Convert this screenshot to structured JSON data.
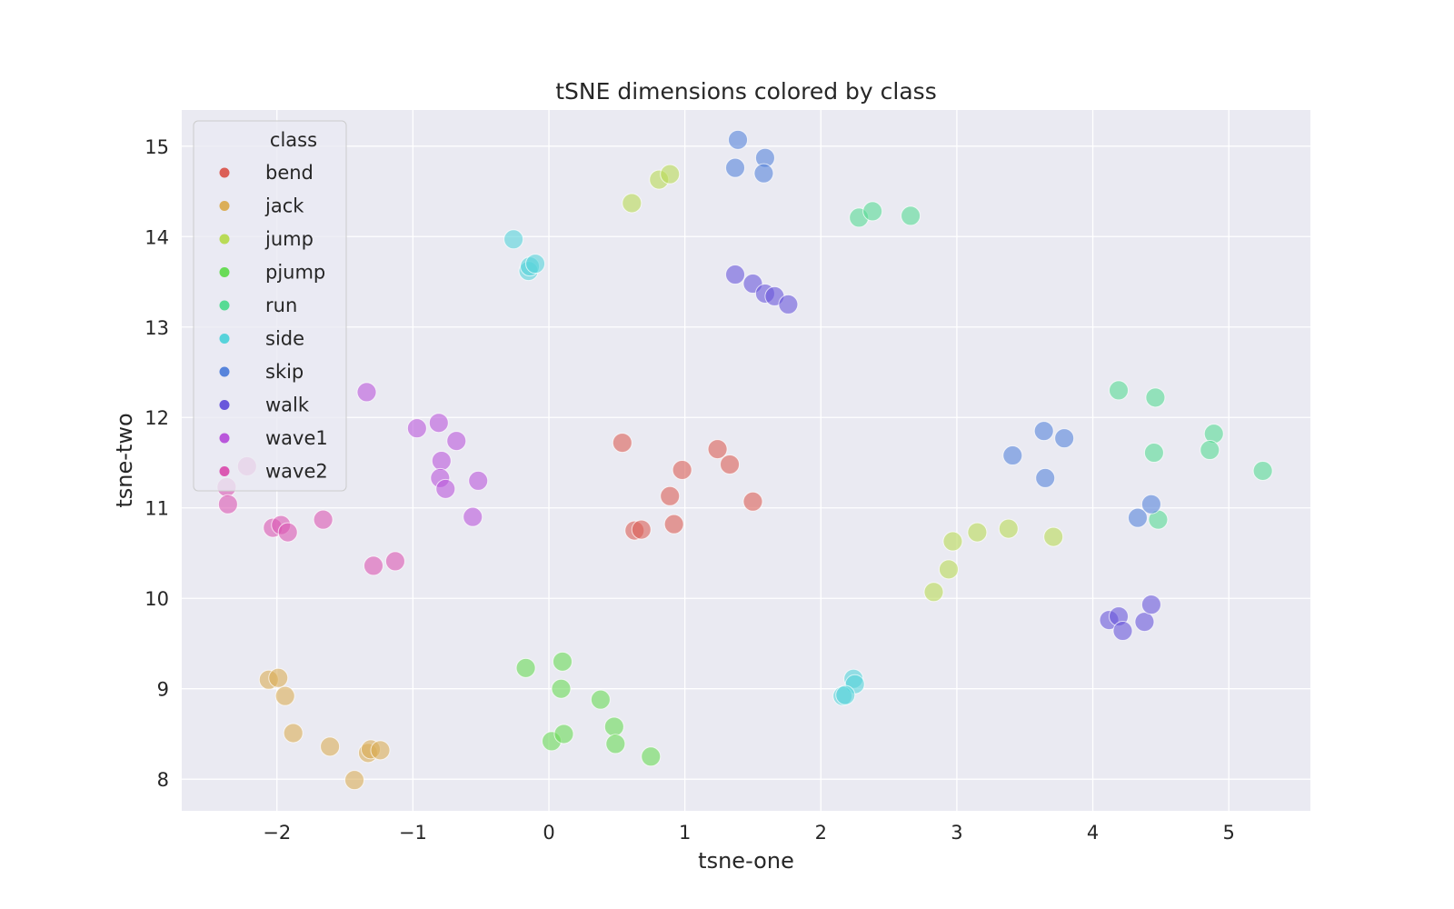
{
  "chart_data": {
    "type": "scatter",
    "title": "tSNE dimensions colored by class",
    "xlabel": "tsne-one",
    "ylabel": "tsne-two",
    "xlim": [
      -2.7,
      5.6
    ],
    "ylim": [
      7.65,
      15.4
    ],
    "xticks": [
      -2,
      -1,
      0,
      1,
      2,
      3,
      4,
      5
    ],
    "xtick_labels": [
      "−2",
      "−1",
      "0",
      "1",
      "2",
      "3",
      "4",
      "5"
    ],
    "yticks": [
      8,
      9,
      10,
      11,
      12,
      13,
      14,
      15
    ],
    "ytick_labels": [
      "8",
      "9",
      "10",
      "11",
      "12",
      "13",
      "14",
      "15"
    ],
    "grid": true,
    "legend": {
      "title": "class",
      "placement": "top-left"
    },
    "series": [
      {
        "name": "bend",
        "color": "#db5f57",
        "points": [
          [
            0.54,
            11.72
          ],
          [
            1.24,
            11.65
          ],
          [
            1.33,
            11.48
          ],
          [
            0.98,
            11.42
          ],
          [
            0.89,
            11.13
          ],
          [
            1.5,
            11.07
          ],
          [
            0.63,
            10.75
          ],
          [
            0.68,
            10.76
          ],
          [
            0.92,
            10.82
          ]
        ]
      },
      {
        "name": "jack",
        "color": "#dbae57",
        "points": [
          [
            -2.06,
            9.1
          ],
          [
            -1.99,
            9.12
          ],
          [
            -1.94,
            8.92
          ],
          [
            -1.88,
            8.51
          ],
          [
            -1.61,
            8.36
          ],
          [
            -1.33,
            8.29
          ],
          [
            -1.31,
            8.33
          ],
          [
            -1.24,
            8.32
          ],
          [
            -1.43,
            7.99
          ]
        ]
      },
      {
        "name": "jump",
        "color": "#b9db57",
        "points": [
          [
            0.61,
            14.37
          ],
          [
            0.81,
            14.63
          ],
          [
            0.89,
            14.69
          ],
          [
            2.97,
            10.63
          ],
          [
            3.15,
            10.73
          ],
          [
            3.38,
            10.77
          ],
          [
            3.71,
            10.68
          ],
          [
            2.94,
            10.32
          ],
          [
            2.83,
            10.07
          ]
        ]
      },
      {
        "name": "pjump",
        "color": "#69db57",
        "points": [
          [
            -0.17,
            9.23
          ],
          [
            0.1,
            9.3
          ],
          [
            0.09,
            9.0
          ],
          [
            0.38,
            8.88
          ],
          [
            0.02,
            8.42
          ],
          [
            0.11,
            8.5
          ],
          [
            0.48,
            8.58
          ],
          [
            0.49,
            8.39
          ],
          [
            0.75,
            8.25
          ]
        ]
      },
      {
        "name": "run",
        "color": "#57db94",
        "points": [
          [
            2.28,
            14.21
          ],
          [
            2.38,
            14.28
          ],
          [
            2.66,
            14.23
          ],
          [
            4.19,
            12.3
          ],
          [
            4.46,
            12.22
          ],
          [
            4.89,
            11.82
          ],
          [
            4.86,
            11.64
          ],
          [
            4.45,
            11.61
          ],
          [
            5.25,
            11.41
          ],
          [
            4.48,
            10.87
          ]
        ]
      },
      {
        "name": "side",
        "color": "#57d3db",
        "points": [
          [
            -0.26,
            13.97
          ],
          [
            -0.15,
            13.62
          ],
          [
            -0.14,
            13.67
          ],
          [
            -0.1,
            13.7
          ],
          [
            2.24,
            9.11
          ],
          [
            2.25,
            9.05
          ],
          [
            2.16,
            8.92
          ],
          [
            2.18,
            8.93
          ]
        ]
      },
      {
        "name": "skip",
        "color": "#5784db",
        "points": [
          [
            1.39,
            15.07
          ],
          [
            1.59,
            14.87
          ],
          [
            1.37,
            14.76
          ],
          [
            1.58,
            14.7
          ],
          [
            3.64,
            11.85
          ],
          [
            3.79,
            11.77
          ],
          [
            3.41,
            11.58
          ],
          [
            3.65,
            11.33
          ],
          [
            4.43,
            11.04
          ],
          [
            4.33,
            10.89
          ]
        ]
      },
      {
        "name": "walk",
        "color": "#6957db",
        "points": [
          [
            1.37,
            13.58
          ],
          [
            1.5,
            13.48
          ],
          [
            1.59,
            13.37
          ],
          [
            1.66,
            13.34
          ],
          [
            1.76,
            13.25
          ],
          [
            4.12,
            9.76
          ],
          [
            4.19,
            9.8
          ],
          [
            4.22,
            9.64
          ],
          [
            4.38,
            9.74
          ],
          [
            4.43,
            9.93
          ]
        ]
      },
      {
        "name": "wave1",
        "color": "#b957db",
        "points": [
          [
            -1.34,
            12.28
          ],
          [
            -0.97,
            11.88
          ],
          [
            -0.81,
            11.94
          ],
          [
            -0.68,
            11.74
          ],
          [
            -0.79,
            11.52
          ],
          [
            -0.8,
            11.33
          ],
          [
            -0.76,
            11.21
          ],
          [
            -0.52,
            11.3
          ],
          [
            -0.56,
            10.9
          ]
        ]
      },
      {
        "name": "wave2",
        "color": "#db57b2",
        "points": [
          [
            -2.22,
            11.46
          ],
          [
            -2.37,
            11.23
          ],
          [
            -2.36,
            11.04
          ],
          [
            -2.03,
            10.78
          ],
          [
            -1.97,
            10.81
          ],
          [
            -1.92,
            10.73
          ],
          [
            -1.66,
            10.87
          ],
          [
            -1.29,
            10.36
          ],
          [
            -1.13,
            10.41
          ]
        ]
      }
    ]
  }
}
